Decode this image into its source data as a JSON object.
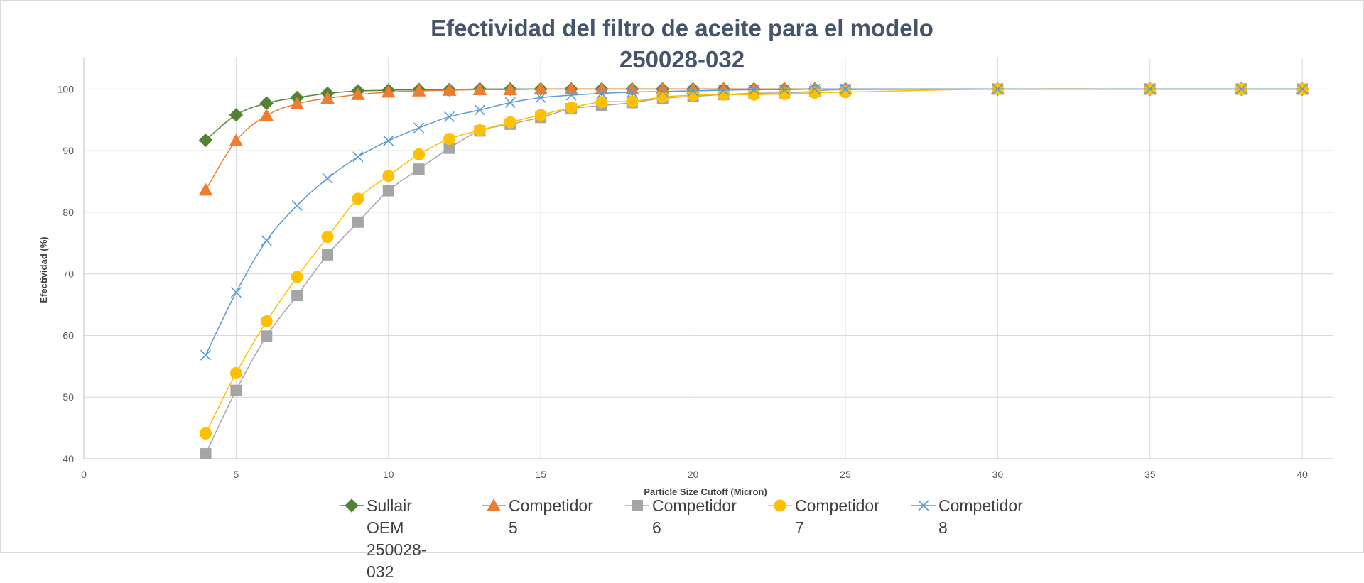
{
  "chart_data": {
    "type": "line",
    "title_line1": "Efectividad del filtro de aceite para el modelo",
    "title_line2": "250028-032",
    "xlabel": "Particle Size Cutoff (Micron)",
    "ylabel": "Efectividad (%)",
    "xlim": [
      0,
      41
    ],
    "ylim": [
      40,
      105
    ],
    "xticks": [
      0,
      5,
      10,
      15,
      20,
      25,
      30,
      35,
      40
    ],
    "yticks": [
      40,
      50,
      60,
      70,
      80,
      90,
      100
    ],
    "grid": true,
    "legend_position": "bottom",
    "series": [
      {
        "name": "Sullair OEM\n250028-032",
        "color": "#548235",
        "marker": "diamond",
        "x": [
          4,
          5,
          6,
          7,
          8,
          9,
          10,
          11,
          12,
          13,
          14,
          15,
          16,
          17,
          18,
          19,
          20,
          21,
          22,
          23,
          24,
          25,
          30,
          35,
          38,
          40
        ],
        "values": [
          91.7,
          95.8,
          97.7,
          98.6,
          99.3,
          99.7,
          99.8,
          99.9,
          99.9,
          100,
          100,
          100,
          100,
          100,
          100,
          100,
          100,
          100,
          100,
          100,
          100,
          100,
          100,
          100,
          100,
          100
        ]
      },
      {
        "name": "Competidor\n5",
        "color": "#ed7d31",
        "marker": "triangle",
        "x": [
          4,
          5,
          6,
          7,
          8,
          9,
          10,
          11,
          12,
          13,
          14,
          15,
          16,
          17,
          18,
          19,
          20,
          21,
          22,
          23,
          24,
          25,
          30,
          35,
          38,
          40
        ],
        "values": [
          83.6,
          91.6,
          95.7,
          97.6,
          98.5,
          99.1,
          99.5,
          99.7,
          99.8,
          99.9,
          99.9,
          100,
          100,
          100,
          100,
          100,
          100,
          100,
          100,
          100,
          100,
          100,
          100,
          100,
          100,
          100
        ]
      },
      {
        "name": "Competidor\n6",
        "color": "#a5a5a5",
        "marker": "square",
        "x": [
          4,
          5,
          6,
          7,
          8,
          9,
          10,
          11,
          12,
          13,
          14,
          15,
          16,
          17,
          18,
          19,
          20,
          21,
          22,
          23,
          24,
          25,
          30,
          35,
          38,
          40
        ],
        "values": [
          40.8,
          51.1,
          59.9,
          66.5,
          73.1,
          78.4,
          83.5,
          87.0,
          90.4,
          93.2,
          94.3,
          95.4,
          96.8,
          97.3,
          97.8,
          98.5,
          98.8,
          99.1,
          99.3,
          99.4,
          99.6,
          99.9,
          100,
          100,
          100,
          100
        ]
      },
      {
        "name": "Competidor\n7",
        "color": "#ffc000",
        "marker": "circle",
        "x": [
          4,
          5,
          6,
          7,
          8,
          9,
          10,
          11,
          12,
          13,
          14,
          15,
          16,
          17,
          18,
          19,
          20,
          21,
          22,
          23,
          24,
          25,
          30,
          35,
          38,
          40
        ],
        "values": [
          44.1,
          53.9,
          62.3,
          69.5,
          76.0,
          82.2,
          85.9,
          89.4,
          91.9,
          93.3,
          94.6,
          95.8,
          97.0,
          97.9,
          98.0,
          98.7,
          99.0,
          99.1,
          99.1,
          99.2,
          99.4,
          99.5,
          100,
          100,
          100,
          100
        ]
      },
      {
        "name": "Competidor\n8",
        "color": "#5b9bd5",
        "marker": "x",
        "x": [
          4,
          5,
          6,
          7,
          8,
          9,
          10,
          11,
          12,
          13,
          14,
          15,
          16,
          17,
          18,
          19,
          20,
          21,
          22,
          23,
          24,
          25,
          30,
          35,
          38,
          40
        ],
        "values": [
          56.8,
          67.0,
          75.4,
          81.1,
          85.5,
          89.0,
          91.6,
          93.7,
          95.5,
          96.6,
          97.8,
          98.6,
          99.0,
          99.3,
          99.5,
          99.6,
          99.7,
          99.8,
          99.9,
          99.9,
          100,
          100,
          100,
          100,
          100,
          100
        ]
      }
    ]
  }
}
